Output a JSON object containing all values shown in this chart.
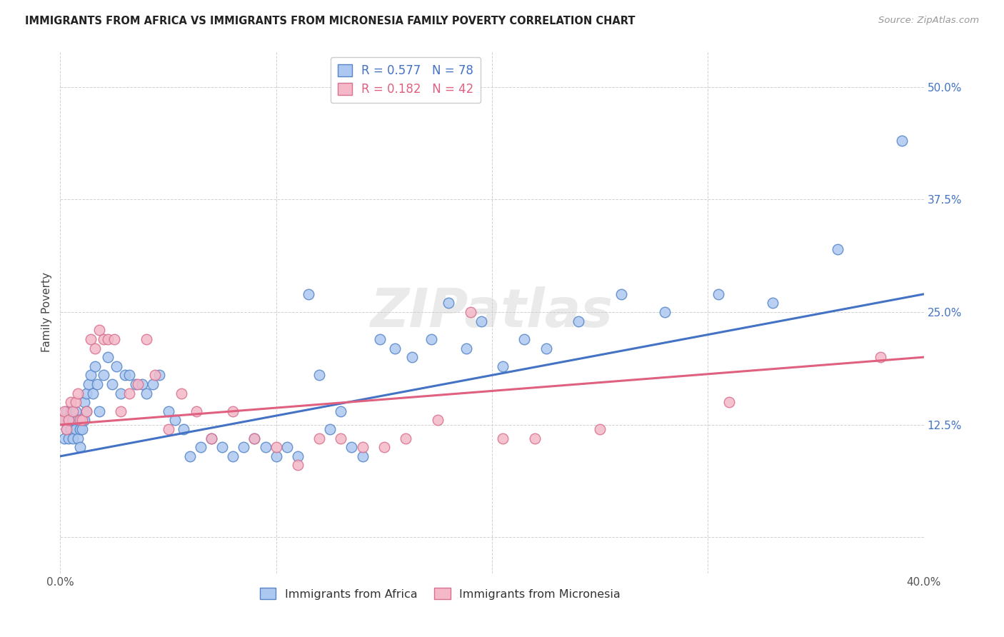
{
  "title": "IMMIGRANTS FROM AFRICA VS IMMIGRANTS FROM MICRONESIA FAMILY POVERTY CORRELATION CHART",
  "source": "Source: ZipAtlas.com",
  "ylabel": "Family Poverty",
  "xlim": [
    0.0,
    0.4
  ],
  "ylim": [
    -0.04,
    0.54
  ],
  "africa_color": "#adc8f0",
  "africa_edge_color": "#5585c8",
  "africa_line_color": "#4472c4",
  "micronesia_color": "#f4b8c8",
  "micronesia_edge_color": "#d87090",
  "micronesia_line_color": "#e06080",
  "africa_R": 0.577,
  "africa_N": 78,
  "micronesia_R": 0.182,
  "micronesia_N": 42,
  "legend_label_africa": "Immigrants from Africa",
  "legend_label_micronesia": "Immigrants from Micronesia",
  "watermark": "ZIPatlas",
  "africa_x": [
    0.001,
    0.002,
    0.002,
    0.003,
    0.003,
    0.004,
    0.004,
    0.005,
    0.005,
    0.006,
    0.006,
    0.007,
    0.007,
    0.008,
    0.008,
    0.009,
    0.009,
    0.01,
    0.01,
    0.011,
    0.011,
    0.012,
    0.012,
    0.013,
    0.014,
    0.015,
    0.016,
    0.017,
    0.018,
    0.02,
    0.022,
    0.024,
    0.026,
    0.028,
    0.03,
    0.032,
    0.035,
    0.038,
    0.04,
    0.043,
    0.046,
    0.05,
    0.053,
    0.057,
    0.06,
    0.065,
    0.07,
    0.075,
    0.08,
    0.085,
    0.09,
    0.095,
    0.1,
    0.105,
    0.11,
    0.115,
    0.12,
    0.125,
    0.13,
    0.135,
    0.14,
    0.148,
    0.155,
    0.163,
    0.172,
    0.18,
    0.188,
    0.195,
    0.205,
    0.215,
    0.225,
    0.24,
    0.26,
    0.28,
    0.305,
    0.33,
    0.36,
    0.39
  ],
  "africa_y": [
    0.13,
    0.11,
    0.13,
    0.12,
    0.14,
    0.11,
    0.13,
    0.12,
    0.14,
    0.13,
    0.11,
    0.12,
    0.14,
    0.13,
    0.11,
    0.12,
    0.1,
    0.13,
    0.12,
    0.15,
    0.13,
    0.14,
    0.16,
    0.17,
    0.18,
    0.16,
    0.19,
    0.17,
    0.14,
    0.18,
    0.2,
    0.17,
    0.19,
    0.16,
    0.18,
    0.18,
    0.17,
    0.17,
    0.16,
    0.17,
    0.18,
    0.14,
    0.13,
    0.12,
    0.09,
    0.1,
    0.11,
    0.1,
    0.09,
    0.1,
    0.11,
    0.1,
    0.09,
    0.1,
    0.09,
    0.27,
    0.18,
    0.12,
    0.14,
    0.1,
    0.09,
    0.22,
    0.21,
    0.2,
    0.22,
    0.26,
    0.21,
    0.24,
    0.19,
    0.22,
    0.21,
    0.24,
    0.27,
    0.25,
    0.27,
    0.26,
    0.32,
    0.44
  ],
  "micronesia_x": [
    0.001,
    0.002,
    0.003,
    0.004,
    0.005,
    0.006,
    0.007,
    0.008,
    0.009,
    0.01,
    0.012,
    0.014,
    0.016,
    0.018,
    0.02,
    0.022,
    0.025,
    0.028,
    0.032,
    0.036,
    0.04,
    0.044,
    0.05,
    0.056,
    0.063,
    0.07,
    0.08,
    0.09,
    0.1,
    0.11,
    0.12,
    0.13,
    0.14,
    0.15,
    0.16,
    0.175,
    0.19,
    0.205,
    0.22,
    0.25,
    0.31,
    0.38
  ],
  "micronesia_y": [
    0.13,
    0.14,
    0.12,
    0.13,
    0.15,
    0.14,
    0.15,
    0.16,
    0.13,
    0.13,
    0.14,
    0.22,
    0.21,
    0.23,
    0.22,
    0.22,
    0.22,
    0.14,
    0.16,
    0.17,
    0.22,
    0.18,
    0.12,
    0.16,
    0.14,
    0.11,
    0.14,
    0.11,
    0.1,
    0.08,
    0.11,
    0.11,
    0.1,
    0.1,
    0.11,
    0.13,
    0.25,
    0.11,
    0.11,
    0.12,
    0.15,
    0.2
  ]
}
